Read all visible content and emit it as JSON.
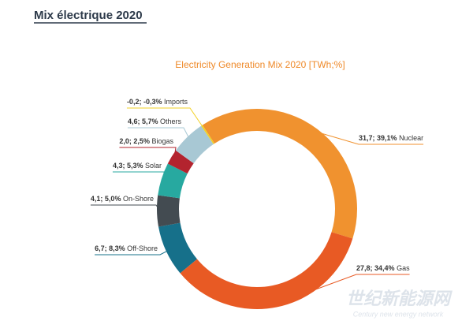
{
  "header": {
    "title": "Mix électrique 2020"
  },
  "chart_data": {
    "type": "donut",
    "title": "Electricity Generation Mix 2020 [TWh;%]",
    "categories": [
      "Nuclear",
      "Gas",
      "Off-Shore",
      "On-Shore",
      "Solar",
      "Biogas",
      "Others",
      "Imports"
    ],
    "values": [
      31.7,
      27.8,
      6.7,
      4.1,
      4.3,
      2.0,
      4.6,
      -0.2
    ],
    "value_labels": [
      "31,7; 39,1%",
      "27,8; 34,4%",
      "6,7; 8,3%",
      "4,1; 5,0%",
      "4,3; 5,3%",
      "2,0; 2,5%",
      "4,6; 5,7%",
      "-0,2; -0,3%"
    ],
    "colors": [
      "#f0922f",
      "#e85a24",
      "#16708a",
      "#434b51",
      "#27a9a0",
      "#b3232e",
      "#a8c8d4",
      "#f2d024"
    ]
  },
  "watermark": {
    "name": "世纪新能源网",
    "subtitle": "Century new energy network"
  }
}
